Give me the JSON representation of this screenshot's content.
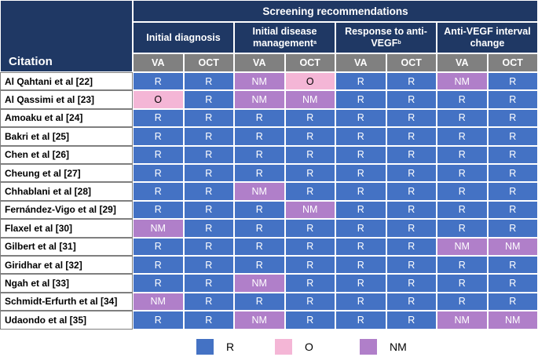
{
  "header": {
    "title": "Screening recommendations",
    "citation_label": "Citation",
    "groups": [
      {
        "text": "Initial diagnosis",
        "sup": ""
      },
      {
        "text": "Initial disease management",
        "sup": "a"
      },
      {
        "text": "Response to anti-VEGF",
        "sup": "b"
      },
      {
        "text": "Anti-VEGF interval change",
        "sup": ""
      }
    ],
    "subcolumns": [
      "VA",
      "OCT",
      "VA",
      "OCT",
      "VA",
      "OCT",
      "VA",
      "OCT"
    ]
  },
  "rows": [
    {
      "citation": "Al Qahtani et al [22]",
      "values": [
        "R",
        "R",
        "NM",
        "O",
        "R",
        "R",
        "NM",
        "R"
      ]
    },
    {
      "citation": "Al Qassimi et al [23]",
      "values": [
        "O",
        "R",
        "NM",
        "NM",
        "R",
        "R",
        "R",
        "R"
      ]
    },
    {
      "citation": "Amoaku et al [24]",
      "values": [
        "R",
        "R",
        "R",
        "R",
        "R",
        "R",
        "R",
        "R"
      ]
    },
    {
      "citation": "Bakri et al [25]",
      "values": [
        "R",
        "R",
        "R",
        "R",
        "R",
        "R",
        "R",
        "R"
      ]
    },
    {
      "citation": "Chen et al [26]",
      "values": [
        "R",
        "R",
        "R",
        "R",
        "R",
        "R",
        "R",
        "R"
      ]
    },
    {
      "citation": "Cheung et al [27]",
      "values": [
        "R",
        "R",
        "R",
        "R",
        "R",
        "R",
        "R",
        "R"
      ]
    },
    {
      "citation": "Chhablani et al [28]",
      "values": [
        "R",
        "R",
        "NM",
        "R",
        "R",
        "R",
        "R",
        "R"
      ]
    },
    {
      "citation": "Fernández-Vigo et al [29]",
      "values": [
        "R",
        "R",
        "R",
        "NM",
        "R",
        "R",
        "R",
        "R"
      ]
    },
    {
      "citation": "Flaxel et al [30]",
      "values": [
        "NM",
        "R",
        "R",
        "R",
        "R",
        "R",
        "R",
        "R"
      ]
    },
    {
      "citation": "Gilbert et al [31]",
      "values": [
        "R",
        "R",
        "R",
        "R",
        "R",
        "R",
        "NM",
        "NM"
      ]
    },
    {
      "citation": "Giridhar et al [32]",
      "values": [
        "R",
        "R",
        "R",
        "R",
        "R",
        "R",
        "R",
        "R"
      ]
    },
    {
      "citation": "Ngah et al [33]",
      "values": [
        "R",
        "R",
        "NM",
        "R",
        "R",
        "R",
        "R",
        "R"
      ]
    },
    {
      "citation": "Schmidt-Erfurth et al [34]",
      "values": [
        "NM",
        "R",
        "R",
        "R",
        "R",
        "R",
        "R",
        "R"
      ]
    },
    {
      "citation": "Udaondo et al [35]",
      "values": [
        "R",
        "R",
        "NM",
        "R",
        "R",
        "R",
        "NM",
        "NM"
      ]
    }
  ],
  "legend": [
    {
      "label": "R",
      "color": "#4472c4"
    },
    {
      "label": "O",
      "color": "#f4b6d6"
    },
    {
      "label": "NM",
      "color": "#b07fc9"
    }
  ],
  "colors": {
    "R": "#4472c4",
    "O": "#f4b6d6",
    "NM": "#b07fc9",
    "header": "#1f3864",
    "subheader": "#808080"
  }
}
